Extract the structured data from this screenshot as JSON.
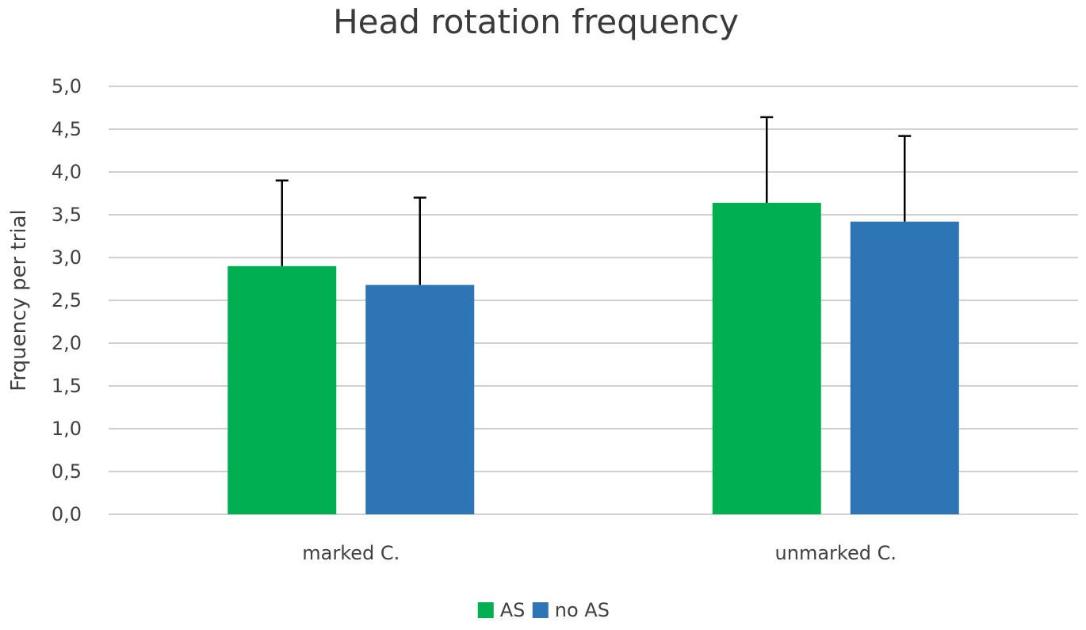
{
  "chart_data": {
    "type": "bar",
    "title": "Head rotation frequency",
    "xlabel": "",
    "ylabel": "Frquency per trial",
    "categories": [
      "marked C.",
      "unmarked C."
    ],
    "series": [
      {
        "name": "AS",
        "color": "#00b050",
        "values": [
          2.9,
          3.64
        ],
        "errors": [
          1.0,
          1.0
        ]
      },
      {
        "name": "no AS",
        "color": "#2e75b6",
        "values": [
          2.68,
          3.42
        ],
        "errors": [
          1.02,
          1.0
        ]
      }
    ],
    "ylim": [
      0,
      5
    ],
    "yticks": [
      "0,0",
      "0,5",
      "1,0",
      "1,5",
      "2,0",
      "2,5",
      "3,0",
      "3,5",
      "4,0",
      "4,5",
      "5,0"
    ],
    "ytick_values": [
      0,
      0.5,
      1,
      1.5,
      2,
      2.5,
      3,
      3.5,
      4,
      4.5,
      5
    ],
    "grid": true,
    "legend_position": "bottom"
  }
}
